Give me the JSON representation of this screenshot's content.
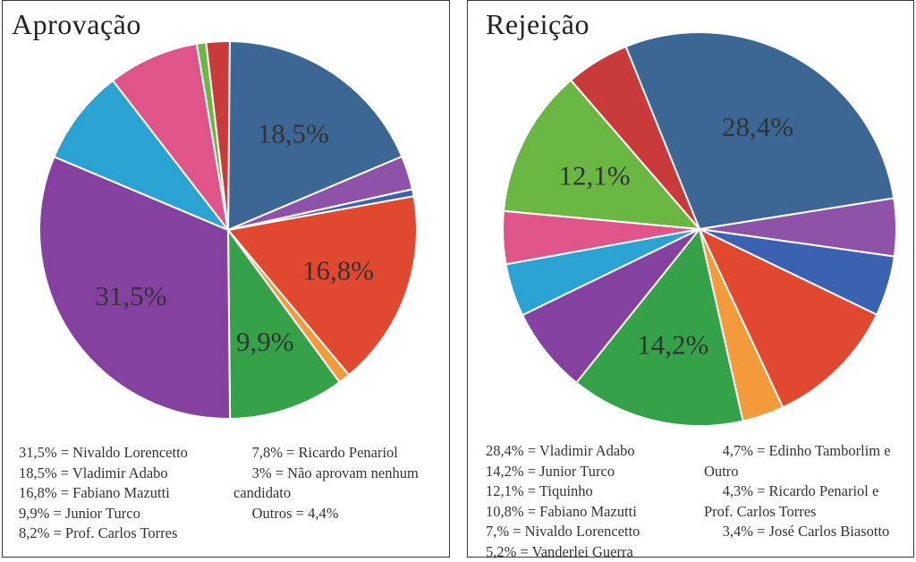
{
  "chart_data": [
    {
      "type": "pie",
      "title": "Aprovação",
      "slices": [
        {
          "value": 18.5,
          "color": "#3c6794",
          "label": "18,5%"
        },
        {
          "value": 2.9,
          "color": "#8e52a8",
          "label": ""
        },
        {
          "value": 0.6,
          "color": "#3b62b0",
          "label": ""
        },
        {
          "value": 16.8,
          "color": "#e0492f",
          "label": "16,8%"
        },
        {
          "value": 1.0,
          "color": "#f39a3c",
          "label": ""
        },
        {
          "value": 9.9,
          "color": "#35a24a",
          "label": "9,9%"
        },
        {
          "value": 31.5,
          "color": "#8441a0",
          "label": "31,5%"
        },
        {
          "value": 8.2,
          "color": "#2aa3d2",
          "label": ""
        },
        {
          "value": 7.8,
          "color": "#e05589",
          "label": ""
        },
        {
          "value": 0.8,
          "color": "#6ab843",
          "label": ""
        },
        {
          "value": 2.0,
          "color": "#c93a3a",
          "label": ""
        }
      ],
      "legend": {
        "left": [
          "31,5% = Nivaldo Lorencetto",
          "18,5% = Vladimir Adabo",
          "16,8% = Fabiano Mazutti",
          "9,9% = Junior Turco",
          "8,2% = Prof. Carlos Torres"
        ],
        "right": [
          "     7,8% = Ricardo Penariol",
          "     3% = Não aprovam nenhum",
          "candidato",
          "     Outros = 4,4%"
        ]
      }
    },
    {
      "type": "pie",
      "title": "Rejeição",
      "slices": [
        {
          "value": 28.4,
          "color": "#3c6794",
          "label": "28,4%"
        },
        {
          "value": 4.7,
          "color": "#8e52a8",
          "label": ""
        },
        {
          "value": 4.9,
          "color": "#3b62b0",
          "label": ""
        },
        {
          "value": 10.8,
          "color": "#e0492f",
          "label": ""
        },
        {
          "value": 3.4,
          "color": "#f39a3c",
          "label": ""
        },
        {
          "value": 14.2,
          "color": "#35a24a",
          "label": "14,2%"
        },
        {
          "value": 7.0,
          "color": "#8441a0",
          "label": ""
        },
        {
          "value": 4.3,
          "color": "#2aa3d2",
          "label": ""
        },
        {
          "value": 4.3,
          "color": "#e05589",
          "label": ""
        },
        {
          "value": 12.1,
          "color": "#6ab843",
          "label": "12,1%"
        },
        {
          "value": 5.2,
          "color": "#c93a3a",
          "label": ""
        }
      ],
      "legend": {
        "left": [
          "28,4% = Vladimir Adabo",
          "14,2% = Junior Turco",
          "12,1% = Tiquinho",
          "10,8% = Fabiano Mazutti",
          "7,% = Nivaldo Lorencetto",
          "5,2% = Vanderlei Guerra"
        ],
        "right": [
          "     4,7% = Edinho Tamborlim e",
          "Outro",
          "     4,3% = Ricardo Penariol e",
          "Prof. Carlos Torres",
          "     3,4% = José Carlos Biasotto"
        ]
      }
    }
  ]
}
